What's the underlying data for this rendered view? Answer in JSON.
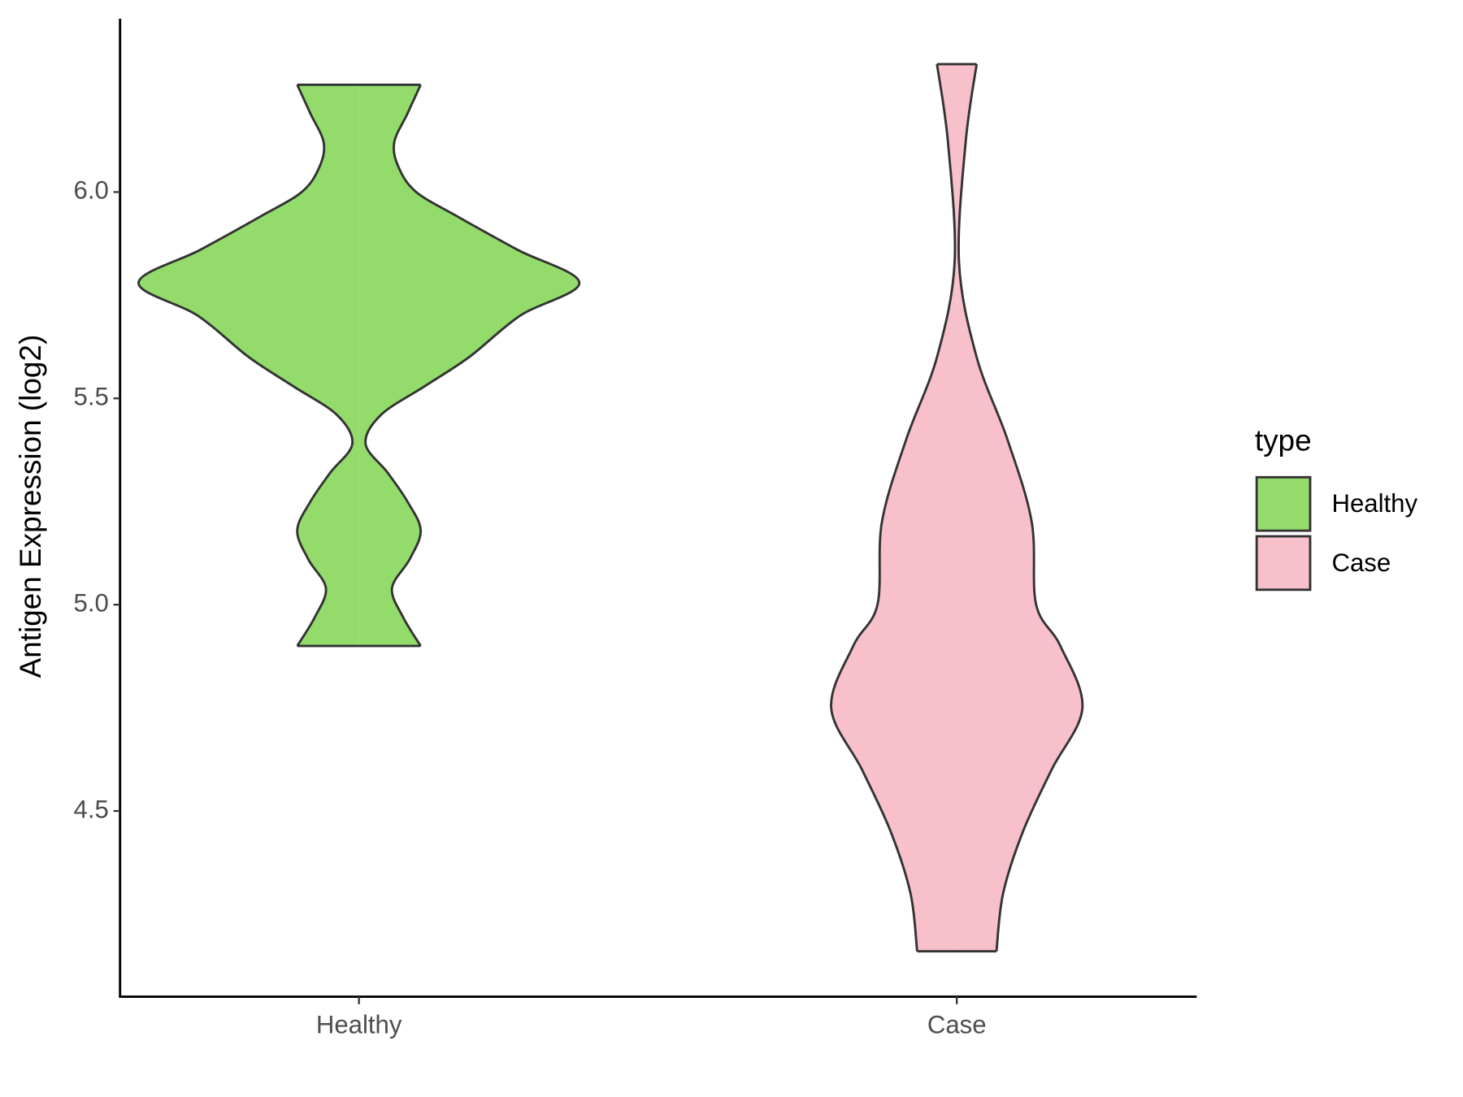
{
  "chart_data": {
    "type": "violin",
    "y_label": "Antigen Expression (log2)",
    "legend_title": "type",
    "categories": [
      "Healthy",
      "Case"
    ],
    "ylim": [
      4.05,
      6.42
    ],
    "yticks": [
      {
        "value": 4.5,
        "label": "4.5"
      },
      {
        "value": 5.0,
        "label": "5.0"
      },
      {
        "value": 5.5,
        "label": "5.5"
      },
      {
        "value": 6.0,
        "label": "6.0"
      }
    ],
    "legend_position": "right",
    "series": [
      {
        "name": "Healthy",
        "color": "#93dc6b",
        "y": [
          4.9,
          4.97,
          5.04,
          5.11,
          5.18,
          5.25,
          5.32,
          5.39,
          5.46,
          5.53,
          5.6,
          5.7,
          5.78,
          5.86,
          5.94,
          6.0,
          6.06,
          6.12,
          6.19,
          6.26
        ],
        "density": [
          0.28,
          0.2,
          0.15,
          0.23,
          0.28,
          0.22,
          0.13,
          0.03,
          0.1,
          0.3,
          0.5,
          0.73,
          1.0,
          0.72,
          0.45,
          0.26,
          0.18,
          0.16,
          0.22,
          0.28
        ]
      },
      {
        "name": "Case",
        "color": "#f7c0cb",
        "y": [
          4.16,
          4.3,
          4.45,
          4.6,
          4.75,
          4.9,
          5.0,
          5.2,
          5.4,
          5.6,
          5.83,
          6.12,
          6.31
        ],
        "density": [
          0.18,
          0.21,
          0.3,
          0.43,
          0.57,
          0.47,
          0.36,
          0.34,
          0.23,
          0.09,
          0.01,
          0.04,
          0.09
        ]
      }
    ]
  }
}
